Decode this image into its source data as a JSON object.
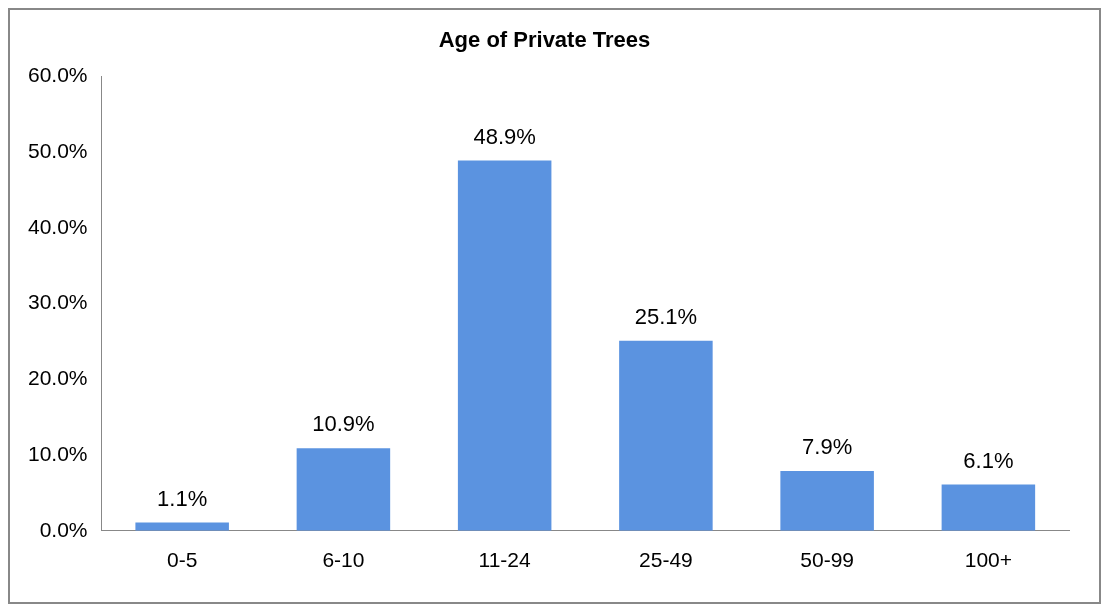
{
  "chart_data": {
    "type": "bar",
    "title": "Age of Private Trees",
    "categories": [
      "0-5",
      "6-10",
      "11-24",
      "25-49",
      "50-99",
      "100+"
    ],
    "values": [
      1.1,
      10.9,
      48.9,
      25.1,
      7.9,
      6.1
    ],
    "value_labels": [
      "1.1%",
      "10.9%",
      "48.9%",
      "25.1%",
      "7.9%",
      "6.1%"
    ],
    "color": "#5b93e0",
    "ylim": [
      0,
      60
    ],
    "yticks": [
      {
        "value": 0,
        "label": "0.0%"
      },
      {
        "value": 10,
        "label": "10.0%"
      },
      {
        "value": 20,
        "label": "20.0%"
      },
      {
        "value": 30,
        "label": "30.0%"
      },
      {
        "value": 40,
        "label": "40.0%"
      },
      {
        "value": 50,
        "label": "50.0%"
      },
      {
        "value": 60,
        "label": "60.0%"
      }
    ],
    "grid": false,
    "legend": false
  }
}
